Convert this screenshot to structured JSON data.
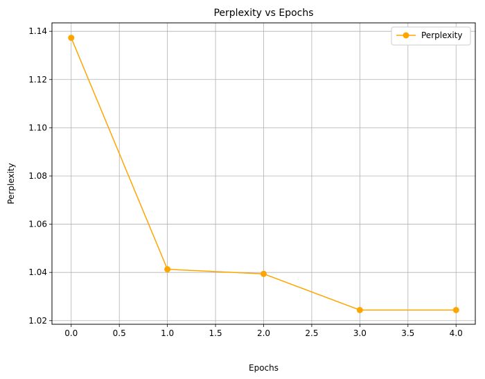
{
  "chart_data": {
    "type": "line",
    "title": "Perplexity vs Epochs",
    "xlabel": "Epochs",
    "ylabel": "Perplexity",
    "xlim": [
      -0.2,
      4.2
    ],
    "ylim": [
      1.0185,
      1.1435
    ],
    "xticks": [
      0.0,
      0.5,
      1.0,
      1.5,
      2.0,
      2.5,
      3.0,
      3.5,
      4.0
    ],
    "xtick_labels": [
      "0.0",
      "0.5",
      "1.0",
      "1.5",
      "2.0",
      "2.5",
      "3.0",
      "3.5",
      "4.0"
    ],
    "yticks": [
      1.02,
      1.04,
      1.06,
      1.08,
      1.1,
      1.12,
      1.14
    ],
    "ytick_labels": [
      "1.02",
      "1.04",
      "1.06",
      "1.08",
      "1.10",
      "1.12",
      "1.14"
    ],
    "grid": true,
    "legend_position": "top-right",
    "series": [
      {
        "name": "Perplexity",
        "color": "#ffa500",
        "marker": "circle",
        "x": [
          0,
          1,
          2,
          3,
          4
        ],
        "y": [
          1.1373,
          1.0413,
          1.0394,
          1.0244,
          1.0244
        ]
      }
    ]
  }
}
